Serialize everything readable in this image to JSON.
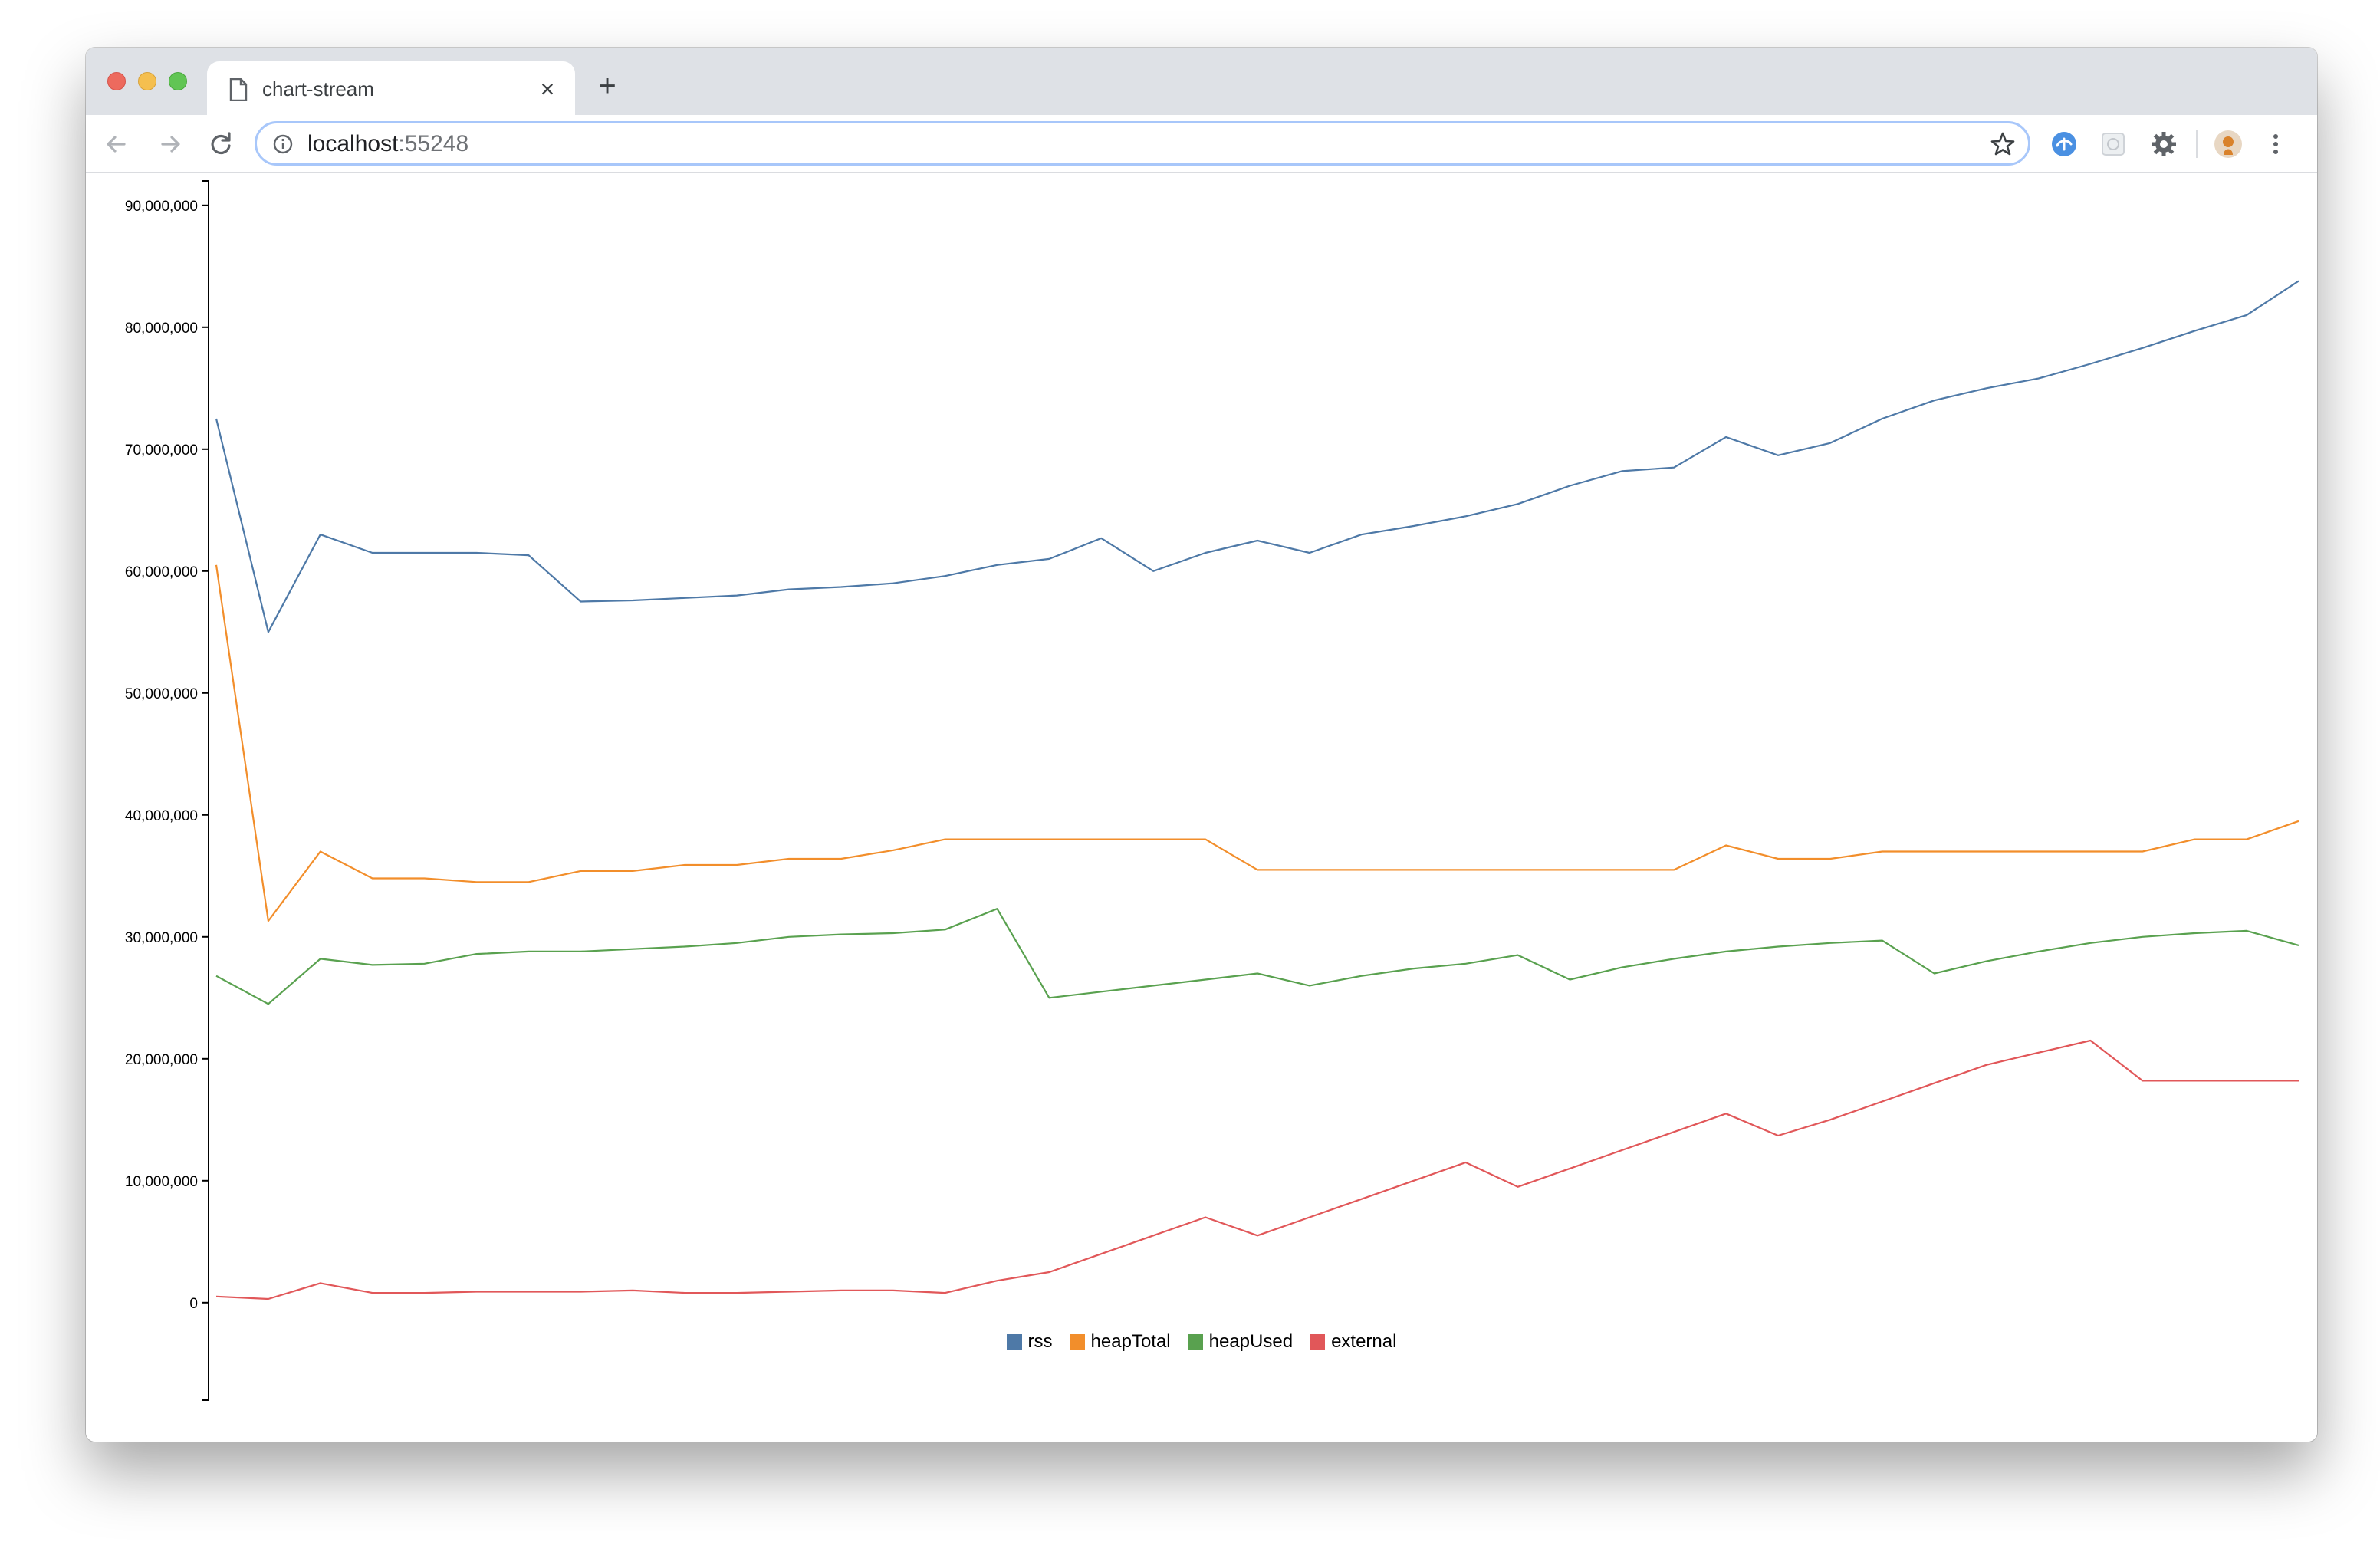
{
  "browser": {
    "tab_title": "chart-stream",
    "new_tab_symbol": "+",
    "close_symbol": "×",
    "url_host": "localhost",
    "url_port": ":55248",
    "icons": [
      "back-arrow-icon",
      "forward-arrow-icon",
      "reload-icon",
      "info-icon",
      "star-icon",
      "extension-icon",
      "extension-icon",
      "extension-icon",
      "profile-avatar-icon",
      "menu-kebab-icon"
    ]
  },
  "chart_data": {
    "type": "line",
    "title": "",
    "xlabel": "",
    "ylabel": "",
    "ylim": [
      -8000000,
      92000000
    ],
    "yticks": [
      0,
      10000000,
      20000000,
      30000000,
      40000000,
      50000000,
      60000000,
      70000000,
      80000000,
      90000000
    ],
    "ytick_labels": [
      "0",
      "10,000,000",
      "20,000,000",
      "30,000,000",
      "40,000,000",
      "50,000,000",
      "60,000,000",
      "70,000,000",
      "80,000,000",
      "90,000,000"
    ],
    "x_axis_visible": false,
    "legend_position": "bottom-center",
    "grid": false,
    "x": [
      0,
      1,
      2,
      3,
      4,
      5,
      6,
      7,
      8,
      9,
      10,
      11,
      12,
      13,
      14,
      15,
      16,
      17,
      18,
      19,
      20,
      21,
      22,
      23,
      24,
      25,
      26,
      27,
      28,
      29,
      30,
      31,
      32,
      33,
      34,
      35,
      36,
      37,
      38,
      39,
      40
    ],
    "series": [
      {
        "name": "rss",
        "color": "#4e79a7",
        "values": [
          72500000,
          55000000,
          63000000,
          61500000,
          61500000,
          61500000,
          61300000,
          57500000,
          57600000,
          57800000,
          58000000,
          58500000,
          58700000,
          59000000,
          59600000,
          60500000,
          61000000,
          62700000,
          60000000,
          61500000,
          62500000,
          61500000,
          63000000,
          63700000,
          64500000,
          65500000,
          67000000,
          68200000,
          68500000,
          71000000,
          69500000,
          70500000,
          72500000,
          74000000,
          75000000,
          75800000,
          77000000,
          78300000,
          79700000,
          81000000,
          83800000
        ]
      },
      {
        "name": "heapTotal",
        "color": "#f28e2b",
        "values": [
          60500000,
          31300000,
          37000000,
          34800000,
          34800000,
          34500000,
          34500000,
          35400000,
          35400000,
          35900000,
          35900000,
          36400000,
          36400000,
          37100000,
          38000000,
          38000000,
          38000000,
          38000000,
          38000000,
          38000000,
          35500000,
          35500000,
          35500000,
          35500000,
          35500000,
          35500000,
          35500000,
          35500000,
          35500000,
          37500000,
          36400000,
          36400000,
          37000000,
          37000000,
          37000000,
          37000000,
          37000000,
          37000000,
          38000000,
          38000000,
          39500000
        ]
      },
      {
        "name": "heapUsed",
        "color": "#59a14f",
        "values": [
          26800000,
          24500000,
          28200000,
          27700000,
          27800000,
          28600000,
          28800000,
          28800000,
          29000000,
          29200000,
          29500000,
          30000000,
          30200000,
          30300000,
          30600000,
          32300000,
          25000000,
          25500000,
          26000000,
          26500000,
          27000000,
          26000000,
          26800000,
          27400000,
          27800000,
          28500000,
          26500000,
          27500000,
          28200000,
          28800000,
          29200000,
          29500000,
          29700000,
          27000000,
          28000000,
          28800000,
          29500000,
          30000000,
          30300000,
          30500000,
          29300000
        ]
      },
      {
        "name": "external",
        "color": "#e15759",
        "values": [
          500000,
          300000,
          1600000,
          800000,
          800000,
          900000,
          900000,
          900000,
          1000000,
          800000,
          800000,
          900000,
          1000000,
          1000000,
          800000,
          1800000,
          2500000,
          4000000,
          5500000,
          7000000,
          5500000,
          7000000,
          8500000,
          10000000,
          11500000,
          9500000,
          11000000,
          12500000,
          14000000,
          15500000,
          13700000,
          15000000,
          16500000,
          18000000,
          19500000,
          20500000,
          21500000,
          18200000,
          18200000,
          18200000,
          18200000
        ]
      }
    ]
  }
}
